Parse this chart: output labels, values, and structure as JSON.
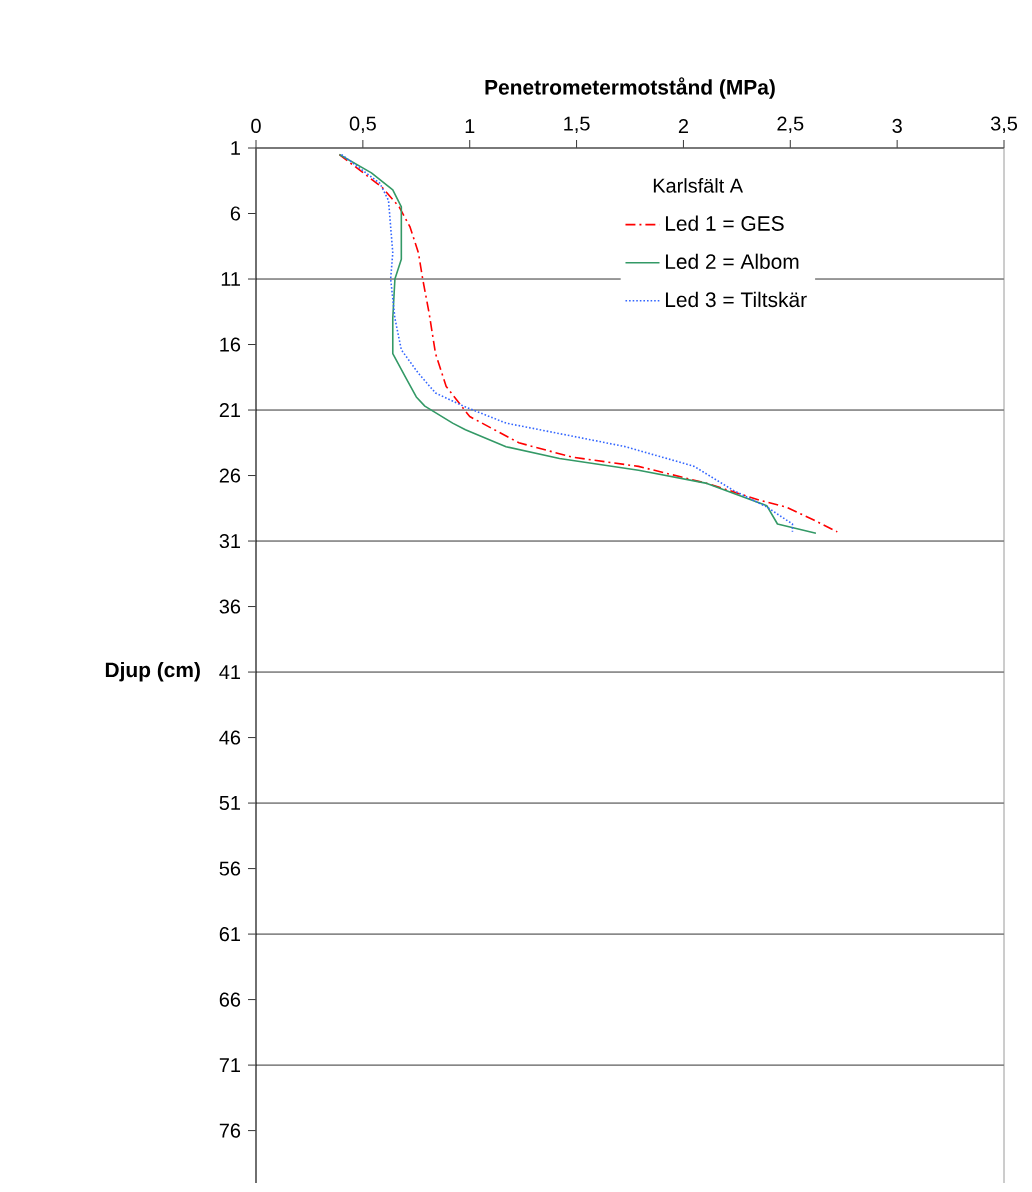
{
  "chart_data": {
    "type": "line",
    "xlabel": "Penetrometermotstånd (MPa)",
    "ylabel": "Djup (cm)",
    "legend_title": "Karlsfält A",
    "xlim": [
      0,
      3.5
    ],
    "xticks": [
      0,
      {
        "value": 0.5,
        "label": "0,5"
      },
      1,
      {
        "value": 1.5,
        "label": "1,5"
      },
      2,
      {
        "value": 2.5,
        "label": "2,5"
      },
      3,
      {
        "value": 3.5,
        "label": "3,5"
      }
    ],
    "ylim": [
      80,
      1
    ],
    "yticks": [
      1,
      6,
      11,
      16,
      21,
      26,
      31,
      36,
      41,
      46,
      51,
      56,
      61,
      66,
      71,
      76
    ],
    "ref_lines": [
      {
        "axis": "y",
        "value": 11,
        "color": "#000000"
      },
      {
        "axis": "y",
        "value": 21,
        "color": "#000000"
      },
      {
        "axis": "y",
        "value": 31,
        "color": "#000000"
      },
      {
        "axis": "y",
        "value": 41,
        "color": "#000000"
      },
      {
        "axis": "y",
        "value": 51,
        "color": "#000000"
      },
      {
        "axis": "y",
        "value": 61,
        "color": "#000000"
      },
      {
        "axis": "y",
        "value": 71,
        "color": "#000000"
      }
    ],
    "legend": "top right",
    "series": [
      {
        "name": "Led 1 = GES",
        "color": "#ff0000",
        "line_style": "dashdot",
        "x": [
          0.39,
          0.59,
          0.67,
          0.72,
          0.76,
          0.78,
          0.81,
          0.84,
          0.89,
          1.0,
          1.23,
          1.48,
          1.79,
          2.11,
          2.36,
          2.48,
          2.61,
          2.72
        ],
        "values": [
          1.5,
          4,
          5.5,
          7,
          9,
          11,
          13.6,
          16.7,
          19.2,
          21.5,
          23.5,
          24.6,
          25.3,
          26.6,
          27.9,
          28.4,
          29.4,
          30.3
        ]
      },
      {
        "name": "Led 2 = Albom",
        "color": "#339966",
        "line_style": "solid",
        "x": [
          0.39,
          0.54,
          0.64,
          0.68,
          0.68,
          0.65,
          0.64,
          0.64,
          0.7,
          0.75,
          0.79,
          0.92,
          0.98,
          1.17,
          1.42,
          1.79,
          2.11,
          2.39,
          2.44,
          2.62
        ],
        "values": [
          1.5,
          2.9,
          4.2,
          5.5,
          9.5,
          11,
          14,
          16.7,
          18.5,
          20,
          20.7,
          22,
          22.5,
          23.8,
          24.7,
          25.6,
          26.6,
          28.3,
          29.7,
          30.4
        ]
      },
      {
        "name": "Led 3 = Tiltskär",
        "color": "#3366ff",
        "line_style": "dotted",
        "x": [
          0.4,
          0.58,
          0.62,
          0.64,
          0.63,
          0.65,
          0.68,
          0.76,
          0.84,
          0.97,
          1.17,
          1.42,
          1.73,
          2.05,
          2.23,
          2.39,
          2.51,
          2.51
        ],
        "values": [
          1.5,
          3.7,
          5,
          9,
          11,
          14,
          16.4,
          18.2,
          19.7,
          20.7,
          22,
          22.8,
          23.8,
          25.3,
          27.1,
          28.4,
          29.7,
          30.3
        ]
      }
    ]
  }
}
